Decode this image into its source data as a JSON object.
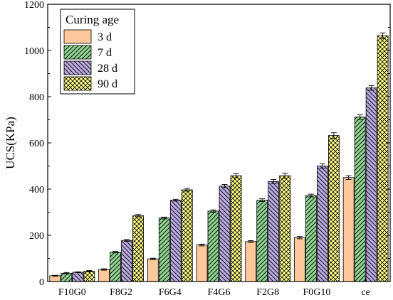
{
  "chart_data": {
    "type": "bar",
    "title": "",
    "xlabel": "",
    "ylabel": "UCS(KPa)",
    "ylim": [
      0,
      1200
    ],
    "yticks": [
      0,
      200,
      400,
      600,
      800,
      1000,
      1200
    ],
    "categories": [
      "F10G0",
      "F8G2",
      "F6G4",
      "F4G6",
      "F2G8",
      "F0G10",
      "ce"
    ],
    "legend": {
      "title": "Curing age",
      "placement": "top-left"
    },
    "error_bars": true,
    "series": [
      {
        "name": "3 d",
        "color": "#FDC99B",
        "pattern": "solid",
        "values": [
          25,
          52,
          98,
          158,
          173,
          190,
          450
        ],
        "errors": [
          2,
          3,
          3,
          4,
          4,
          5,
          8
        ]
      },
      {
        "name": "7 d",
        "color": "#8FD18F",
        "pattern": "diag-right",
        "values": [
          36,
          127,
          275,
          305,
          352,
          372,
          712
        ],
        "errors": [
          3,
          3,
          4,
          5,
          6,
          6,
          10
        ]
      },
      {
        "name": "28 d",
        "color": "#B9A9E0",
        "pattern": "diag-left",
        "values": [
          40,
          178,
          352,
          413,
          433,
          500,
          838
        ],
        "errors": [
          2,
          4,
          4,
          7,
          9,
          9,
          10
        ]
      },
      {
        "name": "90 d",
        "color": "#FFFF8A",
        "pattern": "cross",
        "values": [
          45,
          285,
          397,
          458,
          458,
          632,
          1064
        ],
        "errors": [
          3,
          5,
          6,
          9,
          11,
          12,
          12
        ]
      }
    ]
  }
}
